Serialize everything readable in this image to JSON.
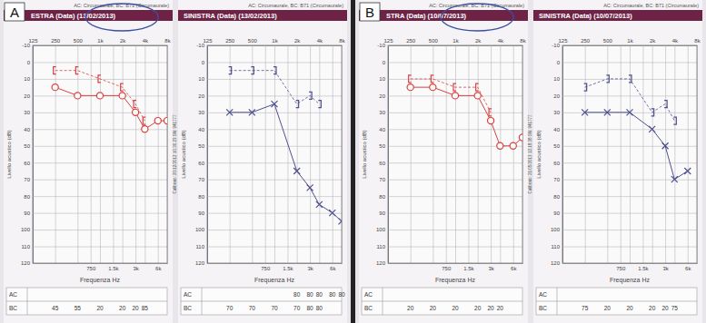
{
  "panels": [
    "A",
    "B"
  ],
  "chart_data": [
    {
      "type": "line",
      "title": "ESTRA (Data)   (13/02/2013)",
      "subtitle": "AC: Circumaurale, BC: B71 (Circumaurale)",
      "annotation": "Calibrato: 20/12/2012 10.30.23 SN: 941777",
      "x_label": "Frequenza Hz",
      "y_label": "Livello acustico (dB)",
      "x": [
        250,
        500,
        1000,
        2000,
        3000,
        4000,
        6000,
        8000
      ],
      "xlim": [
        125,
        8000
      ],
      "xticks": [
        125,
        250,
        500,
        750,
        {
          "value": 1000,
          "label": "1k"
        },
        {
          "value": 1500,
          "label": "1.5k"
        },
        {
          "value": 2000,
          "label": "2k"
        },
        {
          "value": 3000,
          "label": "3k"
        },
        {
          "value": 4000,
          "label": "4k"
        },
        {
          "value": 6000,
          "label": "6k"
        },
        {
          "value": 8000,
          "label": "8k"
        }
      ],
      "ylim": [
        -10,
        120
      ],
      "yticks": [
        -10,
        0,
        10,
        20,
        30,
        40,
        50,
        60,
        70,
        80,
        90,
        100,
        110,
        120
      ],
      "log": "x",
      "grid": true,
      "series": [
        {
          "name": "AC",
          "color": "#d9403f",
          "marker": "circle",
          "line_style": "solid",
          "values": [
            15,
            20,
            20,
            20,
            30,
            40,
            35,
            35
          ]
        },
        {
          "name": "BC",
          "color": "#d9403f",
          "marker": "bracket-left",
          "line_style": "dashed",
          "values": [
            5,
            5,
            10,
            15,
            25,
            35,
            null,
            null
          ]
        }
      ],
      "table": {
        "rows": [
          {
            "label": "AC",
            "values": [
              null,
              null,
              null,
              null,
              null,
              null,
              null,
              null
            ]
          },
          {
            "label": "BC",
            "values": [
              45,
              55,
              20,
              20,
              20,
              85,
              null,
              null
            ]
          }
        ]
      }
    },
    {
      "type": "line",
      "title": "SINISTRA (Data) (13/02/2013)",
      "subtitle": "AC: Circumaurale, BC: B71 (Circumaurale)",
      "x_label": "Frequenza Hz",
      "y_label": "Livello acustico (dB)",
      "x": [
        250,
        500,
        1000,
        2000,
        3000,
        4000,
        6000,
        8000
      ],
      "xlim": [
        125,
        8000
      ],
      "xticks": [
        125,
        250,
        500,
        750,
        {
          "value": 1000,
          "label": "1k"
        },
        {
          "value": 1500,
          "label": "1.5k"
        },
        {
          "value": 2000,
          "label": "2k"
        },
        {
          "value": 3000,
          "label": "3k"
        },
        {
          "value": 4000,
          "label": "4k"
        },
        {
          "value": 6000,
          "label": "6k"
        },
        {
          "value": 8000,
          "label": "8k"
        }
      ],
      "ylim": [
        -10,
        120
      ],
      "yticks": [
        -10,
        0,
        10,
        20,
        30,
        40,
        50,
        60,
        70,
        80,
        90,
        100,
        110,
        120
      ],
      "log": "x",
      "grid": true,
      "series": [
        {
          "name": "AC",
          "color": "#4d4f8c",
          "marker": "cross",
          "line_style": "solid",
          "values": [
            30,
            30,
            25,
            65,
            75,
            85,
            90,
            95
          ]
        },
        {
          "name": "BC",
          "color": "#4d4f8c",
          "marker": "bracket-right",
          "line_style": "dashed",
          "values": [
            5,
            5,
            5,
            25,
            20,
            25,
            null,
            null
          ]
        }
      ],
      "table": {
        "rows": [
          {
            "label": "AC",
            "values": [
              null,
              null,
              null,
              80,
              80,
              80,
              80,
              80
            ]
          },
          {
            "label": "BC",
            "values": [
              70,
              70,
              70,
              70,
              80,
              80,
              null,
              null
            ]
          }
        ]
      }
    },
    {
      "type": "line",
      "title": "STRA (Data)   (10/07/2013)",
      "subtitle": "AC: Circumaurale, BC: B71 (Circumaurale)",
      "annotation": "Calibrato: 21/05/2013 12.18.38 SN: 941777",
      "x_label": "Frequenza Hz",
      "y_label": "Livello acustico (dB)",
      "x": [
        250,
        500,
        1000,
        2000,
        3000,
        4000,
        6000,
        8000
      ],
      "xlim": [
        125,
        8000
      ],
      "xticks": [
        125,
        250,
        500,
        750,
        {
          "value": 1000,
          "label": "1k"
        },
        {
          "value": 1500,
          "label": "1.5k"
        },
        {
          "value": 2000,
          "label": "2k"
        },
        {
          "value": 3000,
          "label": "3k"
        },
        {
          "value": 4000,
          "label": "4k"
        },
        {
          "value": 6000,
          "label": "6k"
        },
        {
          "value": 8000,
          "label": "8k"
        }
      ],
      "ylim": [
        -10,
        120
      ],
      "yticks": [
        -10,
        0,
        10,
        20,
        30,
        40,
        50,
        60,
        70,
        80,
        90,
        100,
        110,
        120
      ],
      "log": "x",
      "grid": true,
      "series": [
        {
          "name": "AC",
          "color": "#d9403f",
          "marker": "circle",
          "line_style": "solid",
          "values": [
            15,
            15,
            20,
            20,
            35,
            50,
            50,
            45
          ]
        },
        {
          "name": "BC",
          "color": "#d9403f",
          "marker": "bracket-left",
          "line_style": "dashed",
          "values": [
            10,
            10,
            15,
            15,
            30,
            null,
            null,
            null
          ]
        }
      ],
      "table": {
        "rows": [
          {
            "label": "AC",
            "values": [
              null,
              null,
              null,
              null,
              null,
              null,
              null,
              null
            ]
          },
          {
            "label": "BC",
            "values": [
              20,
              20,
              20,
              20,
              20,
              20,
              null,
              null
            ]
          }
        ]
      }
    },
    {
      "type": "line",
      "title": "SINISTRA (Data) (10/07/2013)",
      "subtitle": "AC: Circumaurale, BC: B71 (Circumaurale)",
      "x_label": "Frequenza Hz",
      "y_label": "Livello acustico (dB)",
      "x": [
        250,
        500,
        1000,
        2000,
        3000,
        4000,
        6000,
        8000
      ],
      "xlim": [
        125,
        8000
      ],
      "xticks": [
        125,
        250,
        500,
        750,
        {
          "value": 1000,
          "label": "1k"
        },
        {
          "value": 1500,
          "label": "1.5k"
        },
        {
          "value": 2000,
          "label": "2k"
        },
        {
          "value": 3000,
          "label": "3k"
        },
        {
          "value": 4000,
          "label": "4k"
        },
        {
          "value": 6000,
          "label": "6k"
        },
        {
          "value": 8000,
          "label": "8k"
        }
      ],
      "ylim": [
        -10,
        120
      ],
      "yticks": [
        -10,
        0,
        10,
        20,
        30,
        40,
        50,
        60,
        70,
        80,
        90,
        100,
        110,
        120
      ],
      "log": "x",
      "grid": true,
      "series": [
        {
          "name": "AC",
          "color": "#4d4f8c",
          "marker": "cross",
          "line_style": "solid",
          "values": [
            30,
            30,
            30,
            40,
            50,
            70,
            65,
            null
          ]
        },
        {
          "name": "BC",
          "color": "#4d4f8c",
          "marker": "bracket-right",
          "line_style": "dashed",
          "values": [
            15,
            10,
            10,
            30,
            25,
            35,
            null,
            null
          ]
        }
      ],
      "table": {
        "rows": [
          {
            "label": "AC",
            "values": [
              null,
              null,
              null,
              null,
              null,
              null,
              null,
              null
            ]
          },
          {
            "label": "BC",
            "values": [
              75,
              20,
              20,
              20,
              20,
              75,
              null,
              null
            ]
          }
        ]
      }
    }
  ]
}
